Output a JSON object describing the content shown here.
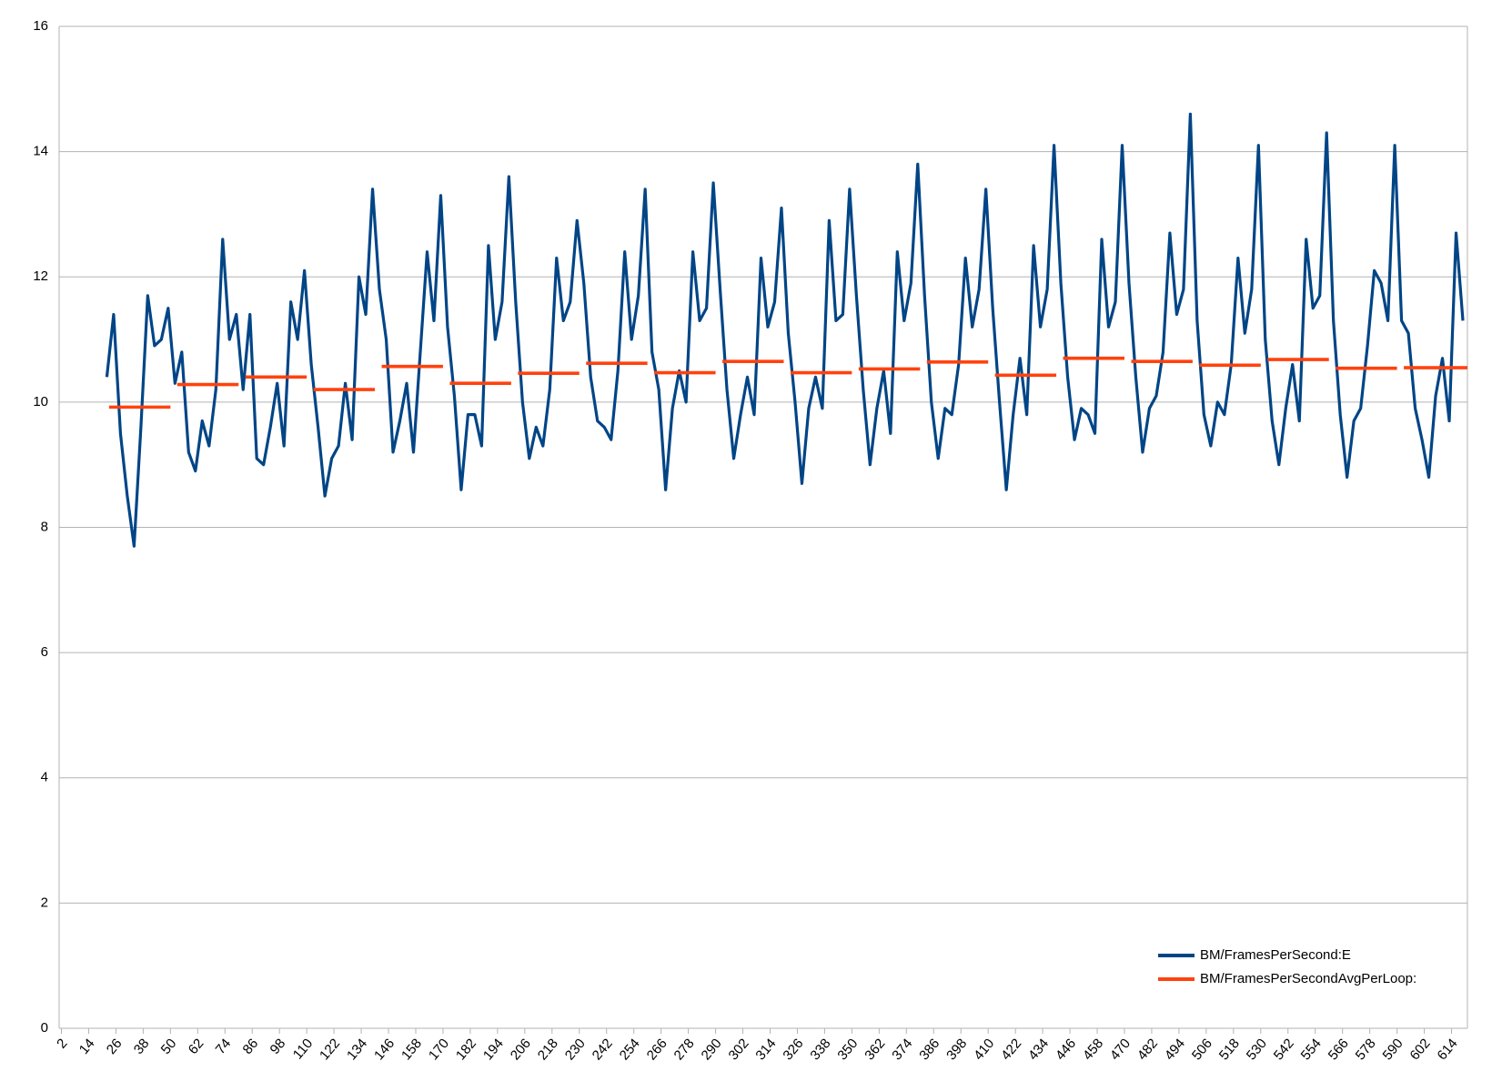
{
  "chart_data": {
    "type": "line",
    "xlim": [
      1,
      621
    ],
    "ylim": [
      0,
      16
    ],
    "yticks": [
      0,
      2,
      4,
      6,
      8,
      10,
      12,
      14,
      16
    ],
    "xticks": [
      2,
      14,
      26,
      38,
      50,
      62,
      74,
      86,
      98,
      110,
      122,
      134,
      146,
      158,
      170,
      182,
      194,
      206,
      218,
      230,
      242,
      254,
      266,
      278,
      290,
      302,
      314,
      326,
      338,
      350,
      362,
      374,
      386,
      398,
      410,
      422,
      434,
      446,
      458,
      470,
      482,
      494,
      506,
      518,
      530,
      542,
      554,
      566,
      578,
      590,
      602,
      614
    ],
    "grid": true,
    "legend": "lower right",
    "series": [
      {
        "name": "BM/FramesPerSecond:E",
        "color": "#004586",
        "x": [
          22,
          25,
          28,
          31,
          34,
          37,
          40,
          43,
          46,
          49,
          52,
          55,
          58,
          61,
          64,
          67,
          70,
          73,
          76,
          79,
          82,
          85,
          88,
          91,
          94,
          97,
          100,
          103,
          106,
          109,
          112,
          115,
          118,
          121,
          124,
          127,
          130,
          133,
          136,
          139,
          142,
          145,
          148,
          151,
          154,
          157,
          160,
          163,
          166,
          169,
          172,
          175,
          178,
          181,
          184,
          187,
          190,
          193,
          196,
          199,
          202,
          205,
          208,
          211,
          214,
          217,
          220,
          223,
          226,
          229,
          232,
          235,
          238,
          241,
          244,
          247,
          250,
          253,
          256,
          259,
          262,
          265,
          268,
          271,
          274,
          277,
          280,
          283,
          286,
          289,
          292,
          295,
          298,
          301,
          304,
          307,
          310,
          313,
          316,
          319,
          322,
          325,
          328,
          331,
          334,
          337,
          340,
          343,
          346,
          349,
          352,
          355,
          358,
          361,
          364,
          367,
          370,
          373,
          376,
          379,
          382,
          385,
          388,
          391,
          394,
          397,
          400,
          403,
          406,
          409,
          412,
          415,
          418,
          421,
          424,
          427,
          430,
          433,
          436,
          439,
          442,
          445,
          448,
          451,
          454,
          457,
          460,
          463,
          466,
          469,
          472,
          475,
          478,
          481,
          484,
          487,
          490,
          493,
          496,
          499,
          502,
          505,
          508,
          511,
          514,
          517,
          520,
          523,
          526,
          529,
          532,
          535,
          538,
          541,
          544,
          547,
          550,
          553,
          556,
          559,
          562,
          565,
          568,
          571,
          574,
          577,
          580,
          583,
          586,
          589,
          592,
          595,
          598,
          601,
          604,
          607,
          610,
          613,
          616,
          619
        ],
        "values": [
          10.4,
          11.4,
          9.5,
          8.5,
          7.7,
          9.6,
          11.7,
          10.9,
          11.0,
          11.5,
          10.3,
          10.8,
          9.2,
          8.9,
          9.7,
          9.3,
          10.2,
          12.6,
          11.0,
          11.4,
          10.2,
          11.4,
          9.1,
          9.0,
          9.6,
          10.3,
          9.3,
          11.6,
          11.0,
          12.1,
          10.6,
          9.6,
          8.5,
          9.1,
          9.3,
          10.3,
          9.4,
          12.0,
          11.4,
          13.4,
          11.8,
          11.0,
          9.2,
          9.7,
          10.3,
          9.2,
          10.8,
          12.4,
          11.3,
          13.3,
          11.2,
          10.1,
          8.6,
          9.8,
          9.8,
          9.3,
          12.5,
          11.0,
          11.6,
          13.6,
          11.6,
          10.0,
          9.1,
          9.6,
          9.3,
          10.2,
          12.3,
          11.3,
          11.6,
          12.9,
          11.9,
          10.4,
          9.7,
          9.6,
          9.4,
          10.5,
          12.4,
          11.0,
          11.7,
          13.4,
          10.8,
          10.2,
          8.6,
          9.9,
          10.5,
          10.0,
          12.4,
          11.3,
          11.5,
          13.5,
          11.8,
          10.2,
          9.1,
          9.8,
          10.4,
          9.8,
          12.3,
          11.2,
          11.6,
          13.1,
          11.1,
          10.0,
          8.7,
          9.9,
          10.4,
          9.9,
          12.9,
          11.3,
          11.4,
          13.4,
          11.7,
          10.2,
          9.0,
          9.9,
          10.5,
          9.5,
          12.4,
          11.3,
          11.9,
          13.8,
          11.7,
          10.0,
          9.1,
          9.9,
          9.8,
          10.6,
          12.3,
          11.2,
          11.8,
          13.4,
          11.5,
          10.0,
          8.6,
          9.8,
          10.7,
          9.8,
          12.5,
          11.2,
          11.8,
          14.1,
          11.9,
          10.4,
          9.4,
          9.9,
          9.8,
          9.5,
          12.6,
          11.2,
          11.6,
          14.1,
          11.9,
          10.4,
          9.2,
          9.9,
          10.1,
          10.8,
          12.7,
          11.4,
          11.8,
          14.6,
          11.3,
          9.8,
          9.3,
          10.0,
          9.8,
          10.6,
          12.3,
          11.1,
          11.8,
          14.1,
          11.0,
          9.7,
          9.0,
          9.9,
          10.6,
          9.7,
          12.6,
          11.5,
          11.7,
          14.3,
          11.3,
          9.8,
          8.8,
          9.7,
          9.9,
          10.9,
          12.1,
          11.9,
          11.3,
          14.1,
          11.3,
          11.1,
          9.9,
          9.4,
          8.8,
          10.1,
          10.7,
          9.7,
          12.7,
          11.3
        ]
      },
      {
        "name": "BM/FramesPerSecondAvgPerLoop:",
        "color": "#ff420e",
        "x": [
          23,
          50,
          51.5,
          53,
          80,
          81.5,
          83,
          110,
          111.5,
          113,
          140,
          141.5,
          143,
          170,
          171.5,
          173,
          200,
          201.5,
          203,
          230,
          231.5,
          233,
          260,
          261.5,
          263,
          290,
          291.5,
          293,
          320,
          321.5,
          323,
          350,
          351.5,
          353,
          380,
          381.5,
          383,
          410,
          411.5,
          413,
          440,
          441.5,
          443,
          470,
          471.5,
          473,
          500,
          501.5,
          503,
          530,
          531.5,
          533,
          560,
          561.5,
          563,
          590,
          591.5,
          593,
          621
        ],
        "values": [
          9.92,
          9.92,
          null,
          10.28,
          10.28,
          null,
          10.4,
          10.4,
          null,
          10.2,
          10.2,
          null,
          10.57,
          10.57,
          null,
          10.3,
          10.3,
          null,
          10.46,
          10.46,
          null,
          10.62,
          10.62,
          null,
          10.47,
          10.47,
          null,
          10.65,
          10.65,
          null,
          10.47,
          10.47,
          null,
          10.53,
          10.53,
          null,
          10.64,
          10.64,
          null,
          10.43,
          10.43,
          null,
          10.7,
          10.7,
          null,
          10.65,
          10.65,
          null,
          10.59,
          10.59,
          null,
          10.68,
          10.68,
          null,
          10.54,
          10.54,
          null,
          10.55,
          10.55
        ]
      }
    ]
  }
}
